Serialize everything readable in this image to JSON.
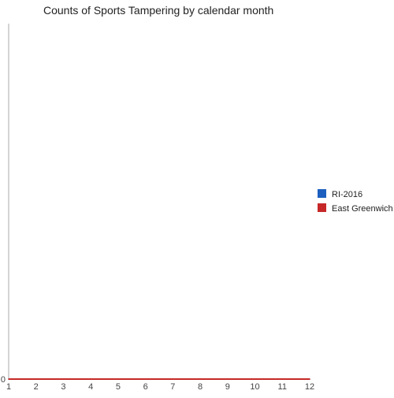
{
  "chart_data": {
    "type": "line",
    "title": "Counts of Sports Tampering by calendar month",
    "xlabel": "",
    "ylabel": "",
    "x": [
      1,
      2,
      3,
      4,
      5,
      6,
      7,
      8,
      9,
      10,
      11,
      12
    ],
    "xlim": [
      1,
      12
    ],
    "ylim": [
      0,
      1
    ],
    "y_ticks": [
      0
    ],
    "grid": false,
    "legend": "right",
    "series": [
      {
        "name": "RI-2016",
        "color": "#1c5fbf",
        "values": [
          0,
          0,
          0,
          0,
          0,
          0,
          0,
          0,
          0,
          0,
          0,
          0
        ]
      },
      {
        "name": "East Greenwich",
        "color": "#c62828",
        "values": [
          0,
          0,
          0,
          0,
          0,
          0,
          0,
          0,
          0,
          0,
          0,
          0
        ]
      }
    ]
  }
}
